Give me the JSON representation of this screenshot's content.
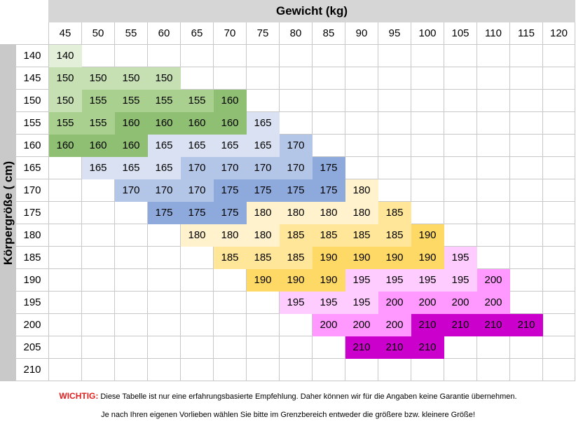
{
  "weight_title": "Gewicht (kg)",
  "height_title": "Körpergröße ( cm)",
  "weights": [
    "45",
    "50",
    "55",
    "60",
    "65",
    "70",
    "75",
    "80",
    "85",
    "90",
    "95",
    "100",
    "105",
    "110",
    "115",
    "120"
  ],
  "rows": [
    {
      "height": "140",
      "cells": [
        "140",
        "",
        "",
        "",
        "",
        "",
        "",
        "",
        "",
        "",
        "",
        "",
        "",
        "",
        "",
        ""
      ]
    },
    {
      "height": "145",
      "cells": [
        "150",
        "150",
        "150",
        "150",
        "",
        "",
        "",
        "",
        "",
        "",
        "",
        "",
        "",
        "",
        "",
        ""
      ]
    },
    {
      "height": "150",
      "cells": [
        "150",
        "155",
        "155",
        "155",
        "155",
        "160",
        "",
        "",
        "",
        "",
        "",
        "",
        "",
        "",
        "",
        ""
      ]
    },
    {
      "height": "155",
      "cells": [
        "155",
        "155",
        "160",
        "160",
        "160",
        "160",
        "165",
        "",
        "",
        "",
        "",
        "",
        "",
        "",
        "",
        ""
      ]
    },
    {
      "height": "160",
      "cells": [
        "160",
        "160",
        "160",
        "165",
        "165",
        "165",
        "165",
        "170",
        "",
        "",
        "",
        "",
        "",
        "",
        "",
        ""
      ]
    },
    {
      "height": "165",
      "cells": [
        "",
        "165",
        "165",
        "165",
        "170",
        "170",
        "170",
        "170",
        "175",
        "",
        "",
        "",
        "",
        "",
        "",
        ""
      ]
    },
    {
      "height": "170",
      "cells": [
        "",
        "",
        "170",
        "170",
        "170",
        "175",
        "175",
        "175",
        "175",
        "180",
        "",
        "",
        "",
        "",
        "",
        ""
      ]
    },
    {
      "height": "175",
      "cells": [
        "",
        "",
        "",
        "175",
        "175",
        "175",
        "180",
        "180",
        "180",
        "180",
        "185",
        "",
        "",
        "",
        "",
        ""
      ]
    },
    {
      "height": "180",
      "cells": [
        "",
        "",
        "",
        "",
        "180",
        "180",
        "180",
        "185",
        "185",
        "185",
        "185",
        "190",
        "",
        "",
        "",
        ""
      ]
    },
    {
      "height": "185",
      "cells": [
        "",
        "",
        "",
        "",
        "",
        "185",
        "185",
        "185",
        "190",
        "190",
        "190",
        "190",
        "195",
        "",
        "",
        ""
      ]
    },
    {
      "height": "190",
      "cells": [
        "",
        "",
        "",
        "",
        "",
        "",
        "190",
        "190",
        "190",
        "195",
        "195",
        "195",
        "195",
        "200",
        "",
        ""
      ]
    },
    {
      "height": "195",
      "cells": [
        "",
        "",
        "",
        "",
        "",
        "",
        "",
        "195",
        "195",
        "195",
        "200",
        "200",
        "200",
        "200",
        "",
        ""
      ]
    },
    {
      "height": "200",
      "cells": [
        "",
        "",
        "",
        "",
        "",
        "",
        "",
        "",
        "200",
        "200",
        "200",
        "210",
        "210",
        "210",
        "210",
        ""
      ]
    },
    {
      "height": "205",
      "cells": [
        "",
        "",
        "",
        "",
        "",
        "",
        "",
        "",
        "",
        "210",
        "210",
        "210",
        "",
        "",
        "",
        ""
      ]
    },
    {
      "height": "210",
      "cells": [
        "",
        "",
        "",
        "",
        "",
        "",
        "",
        "",
        "",
        "",
        "",
        "",
        "",
        "",
        "",
        ""
      ]
    }
  ],
  "size_colors": {
    "140": "#e3efd9",
    "150": "#c6e0b4",
    "155": "#a9d08e",
    "160": "#8fbf72",
    "165": "#d9e1f2",
    "170": "#b4c6e7",
    "175": "#8ea9db",
    "180": "#fff2cc",
    "185": "#ffe699",
    "190": "#ffd966",
    "195": "#ffccff",
    "200": "#ff99ff",
    "210": "#cc00cc"
  },
  "dark_text_sizes_white": [],
  "notice": {
    "label": "WICHTIG:",
    "text": " Diese Tabelle ist nur eine erfahrungsbasierte Empfehlung. Daher können wir für die Angaben keine Garantie übernehmen.",
    "line2": "Je nach Ihren eigenen Vorlieben wählen Sie bitte im Grenzbereich entweder die größere bzw. kleinere Größe!"
  }
}
